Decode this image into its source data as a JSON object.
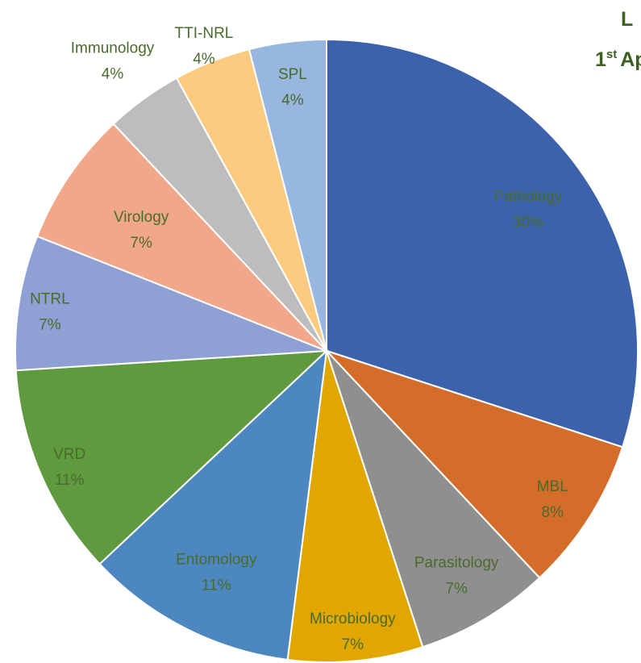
{
  "chart_data": {
    "type": "pie",
    "title": "L",
    "subtitle": {
      "number": "1",
      "suffix": "st",
      "rest": "Ap"
    },
    "categories": [
      "Pathology",
      "MBL",
      "Parasitology",
      "Microbiology",
      "Entomology",
      "VRD",
      "NTRL",
      "Virology",
      "Immunology",
      "TTI-NRL",
      "SPL"
    ],
    "values": [
      30,
      8,
      7,
      7,
      11,
      11,
      7,
      7,
      4,
      4,
      4
    ],
    "value_labels": [
      "30%",
      "8%",
      "7%",
      "7%",
      "11%",
      "11%",
      "7%",
      "7%",
      "4%",
      "4%",
      "4%"
    ],
    "colors": [
      "#3c62ac",
      "#d56d2a",
      "#8f8f8f",
      "#e1a700",
      "#4d87bf",
      "#5f9a3e",
      "#8ea0d4",
      "#f1a78a",
      "#bdbdbd",
      "#fdcb80",
      "#98b7e0"
    ]
  }
}
